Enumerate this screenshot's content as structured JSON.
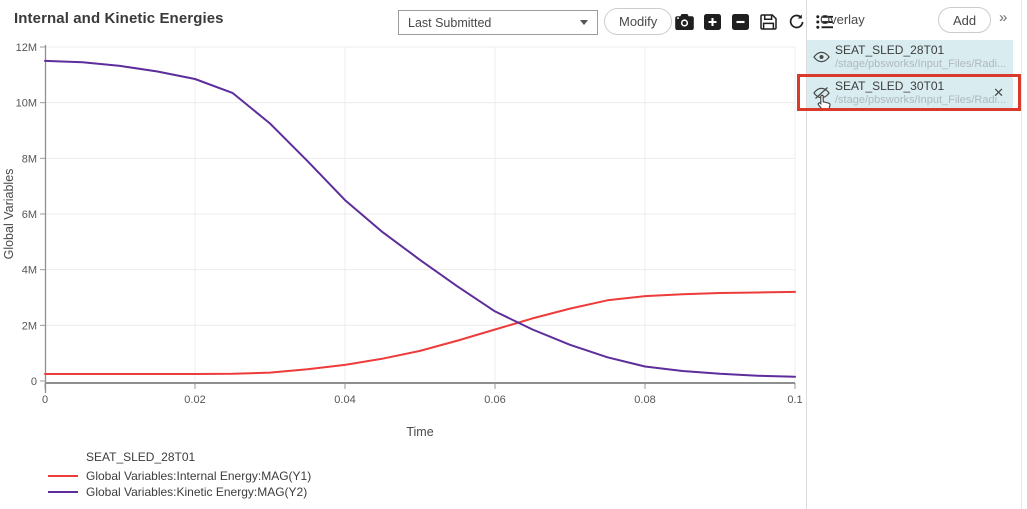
{
  "header": {
    "title": "Internal and Kinetic Energies",
    "run_selector": {
      "value": "Last Submitted"
    },
    "modify_label": "Modify",
    "toolbar_icons": [
      "camera-icon",
      "zoom-in-icon",
      "zoom-out-icon",
      "save-icon",
      "reset-icon",
      "list-icon"
    ]
  },
  "overlay_panel": {
    "title": "Overlay",
    "add_label": "Add",
    "expand_glyph": "»",
    "close_glyph": "✕",
    "item_bg_color": "#d9edf1",
    "highlight_color": "#d93a2b",
    "items": [
      {
        "name": "SEAT_SLED_28T01",
        "path": "/stage/pbsworks/Input_Files/Radi...",
        "visible": true
      },
      {
        "name": "SEAT_SLED_30T01",
        "path": "/stage/pbsworks/Input_Files/Radi...",
        "visible": false,
        "highlighted": true,
        "closable": true
      }
    ]
  },
  "chart_data": {
    "type": "line",
    "title": "Internal and Kinetic Energies",
    "xlabel": "Time",
    "ylabel": "Global Variables",
    "xlim": [
      0,
      0.1
    ],
    "ylim": [
      0,
      12
    ],
    "y_unit": "millions",
    "x_ticks": [
      "0",
      "0.02",
      "0.04",
      "0.06",
      "0.08",
      "0.1"
    ],
    "y_ticks": [
      "0",
      "2M",
      "4M",
      "6M",
      "8M",
      "10M",
      "12M"
    ],
    "grid": true,
    "legend_position": "bottom-left",
    "legend_title": "SEAT_SLED_28T01",
    "series": [
      {
        "name": "Global Variables:Internal Energy:MAG(Y1)",
        "color": "#ee3b3b",
        "x": [
          0,
          0.005,
          0.01,
          0.015,
          0.02,
          0.025,
          0.03,
          0.035,
          0.04,
          0.045,
          0.05,
          0.055,
          0.06,
          0.065,
          0.07,
          0.075,
          0.08,
          0.085,
          0.09,
          0.095,
          0.1
        ],
        "y": [
          0.25,
          0.25,
          0.25,
          0.25,
          0.25,
          0.26,
          0.3,
          0.42,
          0.58,
          0.8,
          1.08,
          1.45,
          1.85,
          2.25,
          2.6,
          2.9,
          3.05,
          3.12,
          3.16,
          3.18,
          3.2
        ]
      },
      {
        "name": "Global Variables:Kinetic Energy:MAG(Y2)",
        "color": "#5c2d9b",
        "x": [
          0,
          0.005,
          0.01,
          0.015,
          0.02,
          0.025,
          0.03,
          0.035,
          0.04,
          0.045,
          0.05,
          0.055,
          0.06,
          0.065,
          0.07,
          0.075,
          0.08,
          0.085,
          0.09,
          0.095,
          0.1
        ],
        "y": [
          11.5,
          11.45,
          11.32,
          11.12,
          10.85,
          10.35,
          9.25,
          7.9,
          6.5,
          5.35,
          4.35,
          3.4,
          2.5,
          1.85,
          1.3,
          0.85,
          0.52,
          0.36,
          0.26,
          0.19,
          0.15
        ]
      }
    ]
  }
}
